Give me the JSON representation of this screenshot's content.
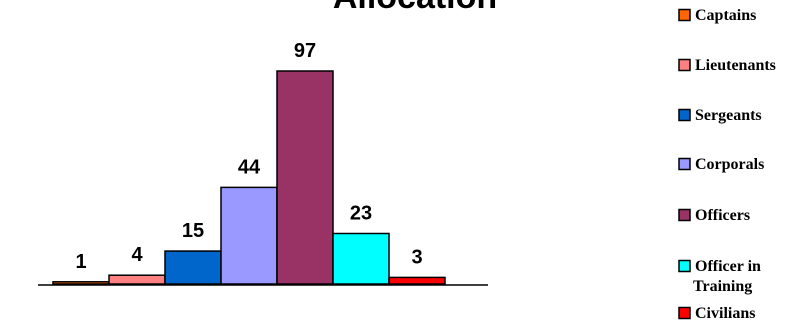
{
  "chart_data": {
    "type": "bar",
    "title": "Allocation",
    "categories": [
      "Captains",
      "Lieutenants",
      "Sergeants",
      "Corporals",
      "Officers",
      "Officer in Training",
      "Civilians"
    ],
    "values": [
      1,
      4,
      15,
      44,
      97,
      23,
      3
    ],
    "colors": [
      "#ff6600",
      "#ff8080",
      "#0066cc",
      "#9999ff",
      "#993366",
      "#00ffff",
      "#ff0000"
    ],
    "legend_position": "right",
    "grid": false,
    "ylim": [
      0,
      97
    ],
    "xlabel": "",
    "ylabel": ""
  }
}
